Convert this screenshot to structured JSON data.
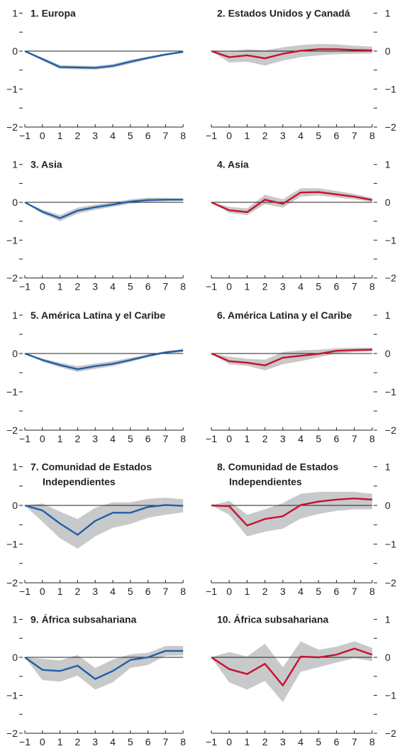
{
  "colors": {
    "left_series": "#1f5fa8",
    "right_series": "#c8102e",
    "band": "#c8c9cb",
    "axis": "#231f20"
  },
  "chart_data": [
    {
      "type": "line",
      "title": "1. Europa",
      "x": [
        -1,
        0,
        1,
        2,
        3,
        4,
        5,
        6,
        7,
        8
      ],
      "ylim": [
        -2,
        1
      ],
      "yticks": [
        -2,
        -1,
        0,
        1
      ],
      "series": [
        {
          "values": [
            0,
            -0.21,
            -0.42,
            -0.43,
            -0.44,
            -0.39,
            -0.28,
            -0.18,
            -0.09,
            -0.02
          ]
        }
      ],
      "band": {
        "lower": [
          0,
          -0.25,
          -0.47,
          -0.48,
          -0.49,
          -0.44,
          -0.33,
          -0.22,
          -0.12,
          -0.04
        ],
        "upper": [
          0,
          -0.17,
          -0.37,
          -0.38,
          -0.39,
          -0.34,
          -0.23,
          -0.14,
          -0.06,
          0
        ]
      }
    },
    {
      "type": "line",
      "title": "2. Estados Unidos y Canadá",
      "x": [
        -1,
        0,
        1,
        2,
        3,
        4,
        5,
        6,
        7,
        8
      ],
      "ylim": [
        -2,
        1
      ],
      "yticks": [
        -2,
        -1,
        0,
        1
      ],
      "series": [
        {
          "values": [
            0,
            -0.16,
            -0.11,
            -0.19,
            -0.07,
            0.01,
            0.05,
            0.05,
            0.03,
            0.02
          ]
        }
      ],
      "band": {
        "lower": [
          0,
          -0.3,
          -0.28,
          -0.38,
          -0.25,
          -0.16,
          -0.11,
          -0.08,
          -0.07,
          -0.06
        ],
        "upper": [
          0,
          -0.02,
          0.05,
          0.02,
          0.1,
          0.16,
          0.19,
          0.18,
          0.14,
          0.12
        ]
      }
    },
    {
      "type": "line",
      "title": "3. Asia",
      "x": [
        -1,
        0,
        1,
        2,
        3,
        4,
        5,
        6,
        7,
        8
      ],
      "ylim": [
        -2,
        1
      ],
      "yticks": [
        -2,
        -1,
        0,
        1
      ],
      "series": [
        {
          "values": [
            0,
            -0.25,
            -0.42,
            -0.22,
            -0.13,
            -0.06,
            0.02,
            0.06,
            0.07,
            0.07
          ]
        }
      ],
      "band": {
        "lower": [
          0,
          -0.3,
          -0.5,
          -0.3,
          -0.2,
          -0.12,
          -0.04,
          0.01,
          0.03,
          0.04
        ],
        "upper": [
          0,
          -0.19,
          -0.34,
          -0.14,
          -0.06,
          0,
          0.08,
          0.12,
          0.12,
          0.11
        ]
      }
    },
    {
      "type": "line",
      "title": "4. Asia",
      "x": [
        -1,
        0,
        1,
        2,
        3,
        4,
        5,
        6,
        7,
        8
      ],
      "ylim": [
        -2,
        1
      ],
      "yticks": [
        -2,
        -1,
        0,
        1
      ],
      "series": [
        {
          "values": [
            0,
            -0.21,
            -0.26,
            0.07,
            -0.04,
            0.26,
            0.27,
            0.21,
            0.15,
            0.06
          ]
        }
      ],
      "band": {
        "lower": [
          0,
          -0.28,
          -0.34,
          -0.05,
          -0.14,
          0.15,
          0.18,
          0.13,
          0.08,
          0.01
        ],
        "upper": [
          0,
          -0.12,
          -0.16,
          0.2,
          0.08,
          0.37,
          0.37,
          0.3,
          0.22,
          0.12
        ]
      }
    },
    {
      "type": "line",
      "title": "5. América Latina y el Caribe",
      "x": [
        -1,
        0,
        1,
        2,
        3,
        4,
        5,
        6,
        7,
        8
      ],
      "ylim": [
        -2,
        1
      ],
      "yticks": [
        -2,
        -1,
        0,
        1
      ],
      "series": [
        {
          "values": [
            0,
            -0.17,
            -0.3,
            -0.41,
            -0.33,
            -0.27,
            -0.17,
            -0.06,
            0.03,
            0.08
          ]
        }
      ],
      "band": {
        "lower": [
          0,
          -0.21,
          -0.36,
          -0.48,
          -0.4,
          -0.33,
          -0.22,
          -0.1,
          0,
          0.04
        ],
        "upper": [
          0,
          -0.13,
          -0.24,
          -0.33,
          -0.26,
          -0.2,
          -0.11,
          -0.02,
          0.06,
          0.12
        ]
      }
    },
    {
      "type": "line",
      "title": "6. América Latina y el Caribe",
      "x": [
        -1,
        0,
        1,
        2,
        3,
        4,
        5,
        6,
        7,
        8
      ],
      "ylim": [
        -2,
        1
      ],
      "yticks": [
        -2,
        -1,
        0,
        1
      ],
      "series": [
        {
          "values": [
            0,
            -0.2,
            -0.24,
            -0.31,
            -0.11,
            -0.06,
            -0.01,
            0.07,
            0.09,
            0.1
          ]
        }
      ],
      "band": {
        "lower": [
          0,
          -0.28,
          -0.32,
          -0.44,
          -0.28,
          -0.2,
          -0.1,
          0,
          0.04,
          0.05
        ],
        "upper": [
          0,
          -0.08,
          -0.14,
          -0.16,
          0.04,
          0.08,
          0.1,
          0.14,
          0.15,
          0.15
        ]
      }
    },
    {
      "type": "line",
      "title": "7. Comunidad de Estados Independientes",
      "x": [
        -1,
        0,
        1,
        2,
        3,
        4,
        5,
        6,
        7,
        8
      ],
      "ylim": [
        -2,
        1
      ],
      "yticks": [
        -2,
        -1,
        0,
        1
      ],
      "series": [
        {
          "values": [
            0,
            -0.13,
            -0.47,
            -0.76,
            -0.4,
            -0.19,
            -0.19,
            -0.04,
            0.01,
            -0.01
          ]
        }
      ],
      "band": {
        "lower": [
          0,
          -0.42,
          -0.85,
          -1.12,
          -0.8,
          -0.58,
          -0.48,
          -0.32,
          -0.24,
          -0.18
        ],
        "upper": [
          0,
          0.05,
          -0.16,
          -0.35,
          -0.06,
          0.08,
          0.08,
          0.17,
          0.2,
          0.16
        ]
      }
    },
    {
      "type": "line",
      "title": "8. Comunidad de Estados Independientes",
      "x": [
        -1,
        0,
        1,
        2,
        3,
        4,
        5,
        6,
        7,
        8
      ],
      "ylim": [
        -2,
        1
      ],
      "yticks": [
        -2,
        -1,
        0,
        1
      ],
      "series": [
        {
          "values": [
            0,
            -0.02,
            -0.52,
            -0.35,
            -0.28,
            0.01,
            0.1,
            0.15,
            0.18,
            0.15
          ]
        }
      ],
      "band": {
        "lower": [
          0,
          -0.24,
          -0.8,
          -0.68,
          -0.6,
          -0.34,
          -0.22,
          -0.14,
          -0.1,
          -0.1
        ],
        "upper": [
          0,
          0.12,
          -0.24,
          -0.1,
          0.06,
          0.3,
          0.35,
          0.35,
          0.35,
          0.3
        ]
      }
    },
    {
      "type": "line",
      "title": "9. África subsahariana",
      "x": [
        -1,
        0,
        1,
        2,
        3,
        4,
        5,
        6,
        7,
        8
      ],
      "ylim": [
        -2,
        1
      ],
      "yticks": [
        -2,
        -1,
        0,
        1
      ],
      "series": [
        {
          "values": [
            0,
            -0.33,
            -0.36,
            -0.22,
            -0.57,
            -0.36,
            -0.07,
            0,
            0.17,
            0.17
          ]
        }
      ],
      "band": {
        "lower": [
          0,
          -0.6,
          -0.64,
          -0.48,
          -0.85,
          -0.66,
          -0.28,
          -0.2,
          0.04,
          0.05
        ],
        "upper": [
          0,
          -0.04,
          -0.08,
          0.06,
          -0.28,
          -0.06,
          0.08,
          0.12,
          0.3,
          0.3
        ]
      }
    },
    {
      "type": "line",
      "title": "10. África subsahariana",
      "x": [
        -1,
        0,
        1,
        2,
        3,
        4,
        5,
        6,
        7,
        8
      ],
      "ylim": [
        -2,
        1
      ],
      "yticks": [
        -2,
        -1,
        0,
        1
      ],
      "series": [
        {
          "values": [
            0,
            -0.31,
            -0.44,
            -0.17,
            -0.74,
            0.02,
            0,
            0.07,
            0.23,
            0.07
          ]
        }
      ],
      "band": {
        "lower": [
          0,
          -0.66,
          -0.85,
          -0.62,
          -1.18,
          -0.38,
          -0.26,
          -0.14,
          -0.02,
          -0.1
        ],
        "upper": [
          0,
          0.14,
          0.02,
          0.36,
          -0.26,
          0.42,
          0.2,
          0.28,
          0.42,
          0.25
        ]
      }
    }
  ]
}
